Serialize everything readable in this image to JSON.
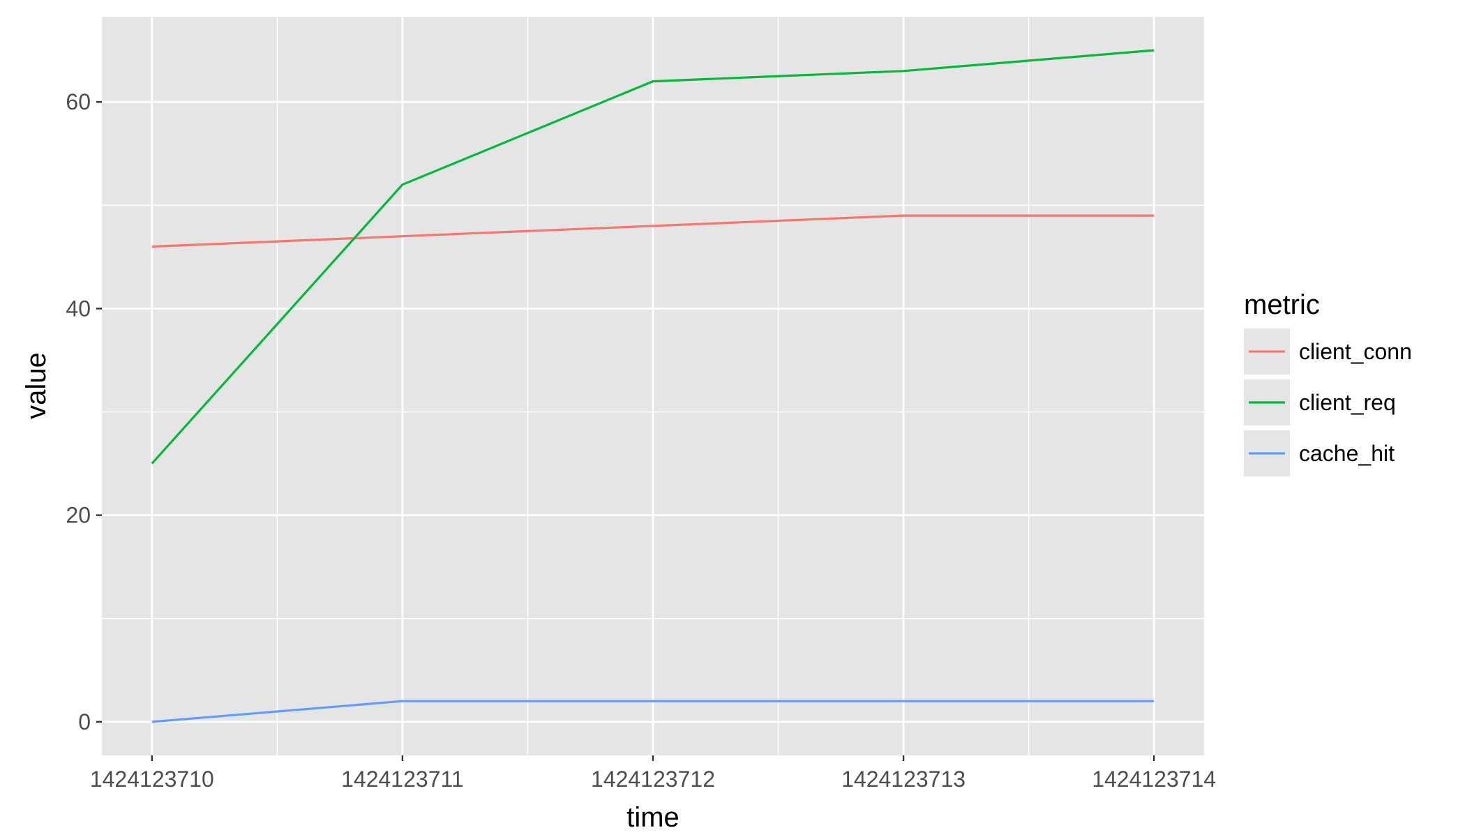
{
  "chart_data": {
    "type": "line",
    "xlabel": "time",
    "ylabel": "value",
    "x": [
      1424123710,
      1424123711,
      1424123712,
      1424123713,
      1424123714
    ],
    "xticks": [
      "1424123710",
      "1424123711",
      "1424123712",
      "1424123713",
      "1424123714"
    ],
    "xlim": [
      1424123709.8,
      1424123714.2
    ],
    "yticks": [
      "0",
      "20",
      "40",
      "60"
    ],
    "ylim": [
      -3.25,
      68.25
    ],
    "grid": true,
    "legend": {
      "title": "metric",
      "placement": "right"
    },
    "series": [
      {
        "name": "client_conn",
        "color": "#F8766D",
        "values": [
          46,
          47,
          48,
          49,
          49
        ]
      },
      {
        "name": "client_req",
        "color": "#00BA38",
        "values": [
          25,
          52,
          62,
          63,
          65
        ]
      },
      {
        "name": "cache_hit",
        "color": "#619CFF",
        "values": [
          0,
          2,
          2,
          2,
          2
        ]
      }
    ],
    "colors": {
      "panel_background": "#E5E5E5",
      "grid": "#FFFFFF",
      "legend_key_background": "#E5E5E5"
    }
  }
}
